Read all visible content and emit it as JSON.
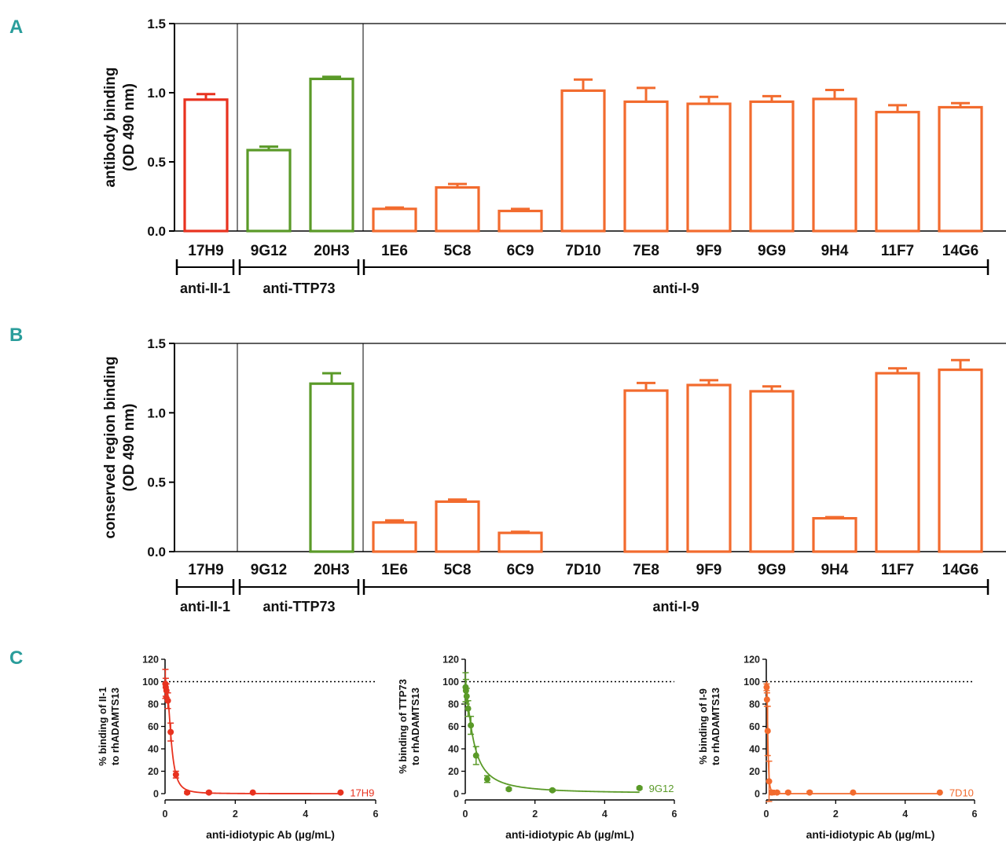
{
  "colors": {
    "panel_letter": "#2a9d9b",
    "anti_II1": "#e8321f",
    "anti_TTP73": "#5a9a28",
    "anti_I9": "#f26b2e",
    "axis": "#000000"
  },
  "chart_data": [
    {
      "id": "A",
      "panel_label": "A",
      "type": "bar",
      "ylabel_line1": "antibody binding",
      "ylabel_line2": "(OD 490 nm)",
      "ylim": [
        0,
        1.5
      ],
      "yticks": [
        "0.0",
        "0.5",
        "1.0",
        "1.5"
      ],
      "ytick_values": [
        0,
        0.5,
        1.0,
        1.5
      ],
      "categories": [
        "17H9",
        "9G12",
        "20H3",
        "1E6",
        "5C8",
        "6C9",
        "7D10",
        "7E8",
        "9F9",
        "9G9",
        "9H4",
        "11F7",
        "14G6"
      ],
      "values": [
        0.95,
        0.585,
        1.1,
        0.16,
        0.315,
        0.145,
        1.015,
        0.935,
        0.92,
        0.935,
        0.955,
        0.86,
        0.895
      ],
      "errors": [
        0.04,
        0.025,
        0.015,
        0.01,
        0.025,
        0.015,
        0.08,
        0.1,
        0.05,
        0.04,
        0.065,
        0.05,
        0.03
      ],
      "groups": [
        {
          "label": "anti-II-1",
          "start": 0,
          "end": 0,
          "color": "#e8321f"
        },
        {
          "label": "anti-TTP73",
          "start": 1,
          "end": 2,
          "color": "#5a9a28"
        },
        {
          "label": "anti-I-9",
          "start": 3,
          "end": 12,
          "color": "#f26b2e"
        }
      ]
    },
    {
      "id": "B",
      "panel_label": "B",
      "type": "bar",
      "ylabel_line1": "conserved region binding",
      "ylabel_line2": "(OD 490 nm)",
      "ylim": [
        0,
        1.5
      ],
      "yticks": [
        "0.0",
        "0.5",
        "1.0",
        "1.5"
      ],
      "ytick_values": [
        0,
        0.5,
        1.0,
        1.5
      ],
      "categories": [
        "17H9",
        "9G12",
        "20H3",
        "1E6",
        "5C8",
        "6C9",
        "7D10",
        "7E8",
        "9F9",
        "9G9",
        "9H4",
        "11F7",
        "14G6"
      ],
      "values": [
        0,
        0,
        1.21,
        0.21,
        0.36,
        0.135,
        0,
        1.16,
        1.2,
        1.155,
        0.24,
        1.285,
        1.31
      ],
      "errors": [
        0,
        0,
        0.075,
        0.015,
        0.015,
        0.008,
        0,
        0.055,
        0.035,
        0.035,
        0.008,
        0.035,
        0.07
      ],
      "groups": [
        {
          "label": "anti-II-1",
          "start": 0,
          "end": 0,
          "color": "#e8321f"
        },
        {
          "label": "anti-TTP73",
          "start": 1,
          "end": 2,
          "color": "#5a9a28"
        },
        {
          "label": "anti-I-9",
          "start": 3,
          "end": 12,
          "color": "#f26b2e"
        }
      ]
    },
    {
      "id": "C1",
      "panel_label": "C",
      "type": "scatter",
      "ylabel_line1": "% binding of II-1",
      "ylabel_line2": "to rhADAMTS13",
      "xlabel": "anti-idiotypic Ab (µg/mL)",
      "xlim": [
        0,
        6
      ],
      "ylim": [
        0,
        120
      ],
      "xticks": [
        "0",
        "2",
        "4",
        "6"
      ],
      "xtick_values": [
        0,
        2,
        4,
        6
      ],
      "yticks": [
        "0",
        "20",
        "40",
        "60",
        "80",
        "100",
        "120"
      ],
      "ytick_values": [
        0,
        20,
        40,
        60,
        80,
        100,
        120
      ],
      "reference_line": 100,
      "series_label": "17H9",
      "color": "#e8321f",
      "x": [
        0.01,
        0.02,
        0.04,
        0.08,
        0.16,
        0.31,
        0.63,
        1.25,
        2.5,
        5.0
      ],
      "y": [
        98,
        95,
        92,
        83,
        55,
        17,
        1,
        1,
        1,
        1
      ],
      "err": [
        13,
        8,
        6,
        7,
        8,
        3,
        1,
        1,
        0.5,
        0.5
      ],
      "fit": {
        "top": 100,
        "ec50": 0.17,
        "hill": 2.6
      }
    },
    {
      "id": "C2",
      "panel_label": "",
      "type": "scatter",
      "ylabel_line1": "% binding of TTP73",
      "ylabel_line2": "to rhADAMTS13",
      "xlabel": "anti-idiotypic Ab (µg/mL)",
      "xlim": [
        0,
        6
      ],
      "ylim": [
        0,
        120
      ],
      "xticks": [
        "0",
        "2",
        "4",
        "6"
      ],
      "xtick_values": [
        0,
        2,
        4,
        6
      ],
      "yticks": [
        "0",
        "20",
        "40",
        "60",
        "80",
        "100",
        "120"
      ],
      "ytick_values": [
        0,
        20,
        40,
        60,
        80,
        100,
        120
      ],
      "reference_line": 100,
      "series_label": "9G12",
      "color": "#5a9a28",
      "x": [
        0.01,
        0.02,
        0.04,
        0.08,
        0.16,
        0.31,
        0.63,
        1.25,
        2.5,
        5.0
      ],
      "y": [
        95,
        92,
        87,
        76,
        61,
        34,
        13,
        4,
        3,
        5
      ],
      "err": [
        13,
        10,
        7,
        7,
        8,
        8,
        3,
        1,
        1,
        1
      ],
      "fit": {
        "top": 100,
        "ec50": 0.22,
        "hill": 1.4
      }
    },
    {
      "id": "C3",
      "panel_label": "",
      "type": "scatter",
      "ylabel_line1": "% binding of I-9",
      "ylabel_line2": "to rhADAMTS13",
      "xlabel": "anti-idiotypic Ab (µg/mL)",
      "xlim": [
        0,
        6
      ],
      "ylim": [
        0,
        120
      ],
      "xticks": [
        "0",
        "2",
        "4",
        "6"
      ],
      "xtick_values": [
        0,
        2,
        4,
        6
      ],
      "yticks": [
        "0",
        "20",
        "40",
        "60",
        "80",
        "100",
        "120"
      ],
      "ytick_values": [
        0,
        20,
        40,
        60,
        80,
        100,
        120
      ],
      "reference_line": 100,
      "series_label": "7D10",
      "color": "#f26b2e",
      "x": [
        0.01,
        0.02,
        0.04,
        0.08,
        0.16,
        0.31,
        0.63,
        1.25,
        2.5,
        5.0
      ],
      "y": [
        95,
        84,
        56,
        11,
        1,
        1,
        1,
        1,
        1,
        1
      ],
      "err": [
        3,
        6,
        22,
        18,
        2,
        1,
        1,
        1,
        0.5,
        0.5
      ],
      "fit": {
        "top": 100,
        "ec50": 0.045,
        "hill": 3.0
      }
    }
  ]
}
